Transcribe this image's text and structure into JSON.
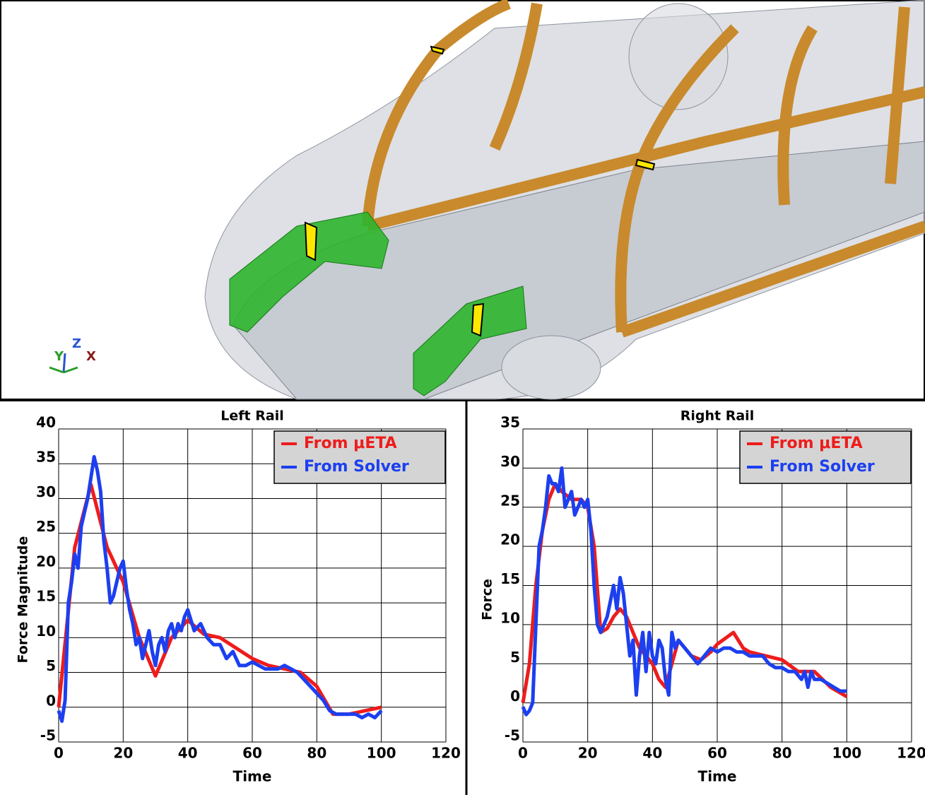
{
  "viewport": {
    "axes": [
      "Y",
      "Z",
      "X"
    ]
  },
  "chart_data": [
    {
      "type": "line",
      "title": "Left Rail",
      "xlabel": "Time",
      "ylabel": "Force Magnitude",
      "xlim": [
        0,
        120
      ],
      "xticks": [
        0,
        20,
        40,
        60,
        80,
        100,
        120
      ],
      "ylim": [
        -5,
        40
      ],
      "yticks": [
        -5,
        0,
        5,
        10,
        15,
        20,
        25,
        30,
        35,
        40
      ],
      "grid": true,
      "legend": "upper right",
      "series": [
        {
          "name": "From μETA",
          "color": "#ee1c1c",
          "x": [
            0,
            5,
            10,
            15,
            20,
            25,
            30,
            35,
            40,
            45,
            50,
            55,
            60,
            65,
            70,
            75,
            80,
            85,
            90,
            95,
            100
          ],
          "values": [
            0,
            23,
            32,
            23,
            18,
            10,
            4.5,
            10,
            12.5,
            10.5,
            10,
            8.5,
            7,
            6,
            5.5,
            5,
            3,
            -1,
            -1,
            -0.5,
            0
          ]
        },
        {
          "name": "From Solver",
          "color": "#1c3ff0",
          "x": [
            0,
            1,
            2,
            3,
            4,
            5,
            6,
            7,
            8,
            9,
            10,
            11,
            12,
            13,
            14,
            15,
            16,
            17,
            18,
            19,
            20,
            21,
            22,
            23,
            24,
            25,
            26,
            27,
            28,
            29,
            30,
            31,
            32,
            33,
            34,
            35,
            36,
            37,
            38,
            39,
            40,
            42,
            44,
            46,
            48,
            50,
            52,
            54,
            56,
            58,
            60,
            62,
            64,
            66,
            68,
            70,
            72,
            74,
            76,
            78,
            80,
            82,
            84,
            86,
            88,
            90,
            92,
            94,
            96,
            98,
            100
          ],
          "values": [
            -0.5,
            -2,
            1,
            15,
            18,
            22,
            20,
            26,
            28,
            30,
            33,
            36,
            34,
            31,
            24,
            20,
            15,
            16,
            18,
            20,
            21,
            17,
            14,
            12,
            9,
            10,
            7,
            9,
            11,
            8,
            6,
            9,
            10,
            8,
            11,
            12,
            10,
            12,
            11,
            13,
            14,
            11,
            12,
            10,
            9,
            9,
            7,
            8,
            6,
            6,
            6.5,
            6,
            5.5,
            5.5,
            5.5,
            6,
            5.5,
            5,
            4,
            3,
            2,
            1,
            -0.5,
            -1,
            -1,
            -1,
            -1,
            -1.5,
            -1,
            -1.5,
            -0.5
          ]
        }
      ]
    },
    {
      "type": "line",
      "title": "Right Rail",
      "xlabel": "Time",
      "ylabel": "Force",
      "xlim": [
        0,
        120
      ],
      "xticks": [
        0,
        20,
        40,
        60,
        80,
        100,
        120
      ],
      "ylim": [
        -5,
        35
      ],
      "yticks": [
        -5,
        0,
        5,
        10,
        15,
        20,
        25,
        30,
        35
      ],
      "grid": true,
      "legend": "upper right",
      "series": [
        {
          "name": "From μETA",
          "color": "#ee1c1c",
          "x": [
            0,
            2,
            4,
            6,
            8,
            10,
            12,
            15,
            18,
            20,
            22,
            24,
            26,
            28,
            30,
            32,
            34,
            36,
            38,
            40,
            42,
            44,
            46,
            48,
            50,
            52,
            55,
            58,
            60,
            65,
            68,
            70,
            75,
            80,
            85,
            90,
            95,
            100
          ],
          "values": [
            0,
            5,
            15,
            22,
            26,
            28,
            27,
            26,
            26,
            25,
            20,
            9,
            9.5,
            11,
            12,
            11,
            9,
            7,
            6,
            5,
            3,
            2,
            5,
            8,
            7,
            6,
            5.5,
            6.5,
            7.5,
            9,
            7,
            6.5,
            6,
            5.5,
            4,
            4,
            2,
            0.8
          ]
        },
        {
          "name": "From Solver",
          "color": "#1c3ff0",
          "x": [
            0,
            1,
            2,
            3,
            4,
            5,
            6,
            7,
            8,
            9,
            10,
            11,
            12,
            13,
            14,
            15,
            16,
            17,
            18,
            19,
            20,
            21,
            22,
            23,
            24,
            25,
            26,
            27,
            28,
            29,
            30,
            31,
            32,
            33,
            34,
            35,
            36,
            37,
            38,
            39,
            40,
            41,
            42,
            43,
            44,
            45,
            46,
            47,
            48,
            50,
            52,
            54,
            56,
            58,
            60,
            62,
            64,
            66,
            68,
            70,
            72,
            74,
            76,
            78,
            80,
            82,
            84,
            86,
            87,
            88,
            89,
            90,
            92,
            94,
            96,
            98,
            100
          ],
          "values": [
            -0.5,
            -1.5,
            -1,
            0,
            10,
            20,
            22,
            25,
            29,
            28,
            28,
            27,
            30,
            25,
            26,
            27,
            24,
            25,
            26,
            25,
            26,
            22,
            15,
            10,
            9,
            10,
            11,
            13,
            15,
            12,
            16,
            14,
            10,
            6,
            8,
            1,
            6,
            9,
            4,
            9,
            6,
            5,
            8,
            7,
            3,
            1,
            9,
            7,
            8,
            7,
            6,
            5,
            6,
            7,
            6.5,
            7,
            7,
            6.5,
            6.5,
            6,
            6,
            6,
            5,
            4.5,
            4.5,
            4,
            4,
            3,
            4,
            2,
            4,
            3,
            3,
            2.5,
            2,
            1.5,
            1.5
          ]
        }
      ]
    }
  ]
}
